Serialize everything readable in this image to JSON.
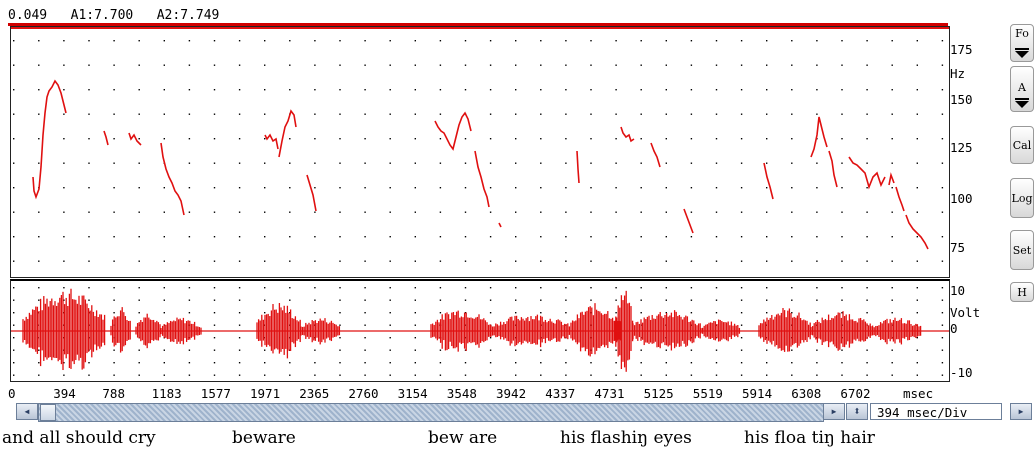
{
  "status": {
    "cursor": "0.049",
    "a1": "A1:7.700",
    "a2": "A2:7.749"
  },
  "f0_axis": {
    "unit": "Hz",
    "ticks": [
      "175",
      "150",
      "125",
      "100",
      "75"
    ]
  },
  "wave_axis": {
    "unit": "Volt",
    "ticks": [
      "10",
      "0",
      "-10"
    ]
  },
  "x_axis": {
    "ticks": [
      "0",
      "394",
      "788",
      "1183",
      "1577",
      "1971",
      "2365",
      "2760",
      "3154",
      "3548",
      "3942",
      "4337",
      "4731",
      "5125",
      "5519",
      "5914",
      "6308",
      "6702"
    ],
    "unit": "msec"
  },
  "side_buttons": [
    "Fo",
    "A",
    "Cal",
    "Log",
    "Set",
    "H"
  ],
  "scale_select": {
    "value": "394 msec/Div"
  },
  "captions": [
    "and all should cry",
    "beware",
    "bew are",
    "his flashiŋ eyes",
    "his floa tiŋ hair"
  ],
  "colors": {
    "trace": "#e01010",
    "accent": "#d00000",
    "grid": "#000000"
  }
}
